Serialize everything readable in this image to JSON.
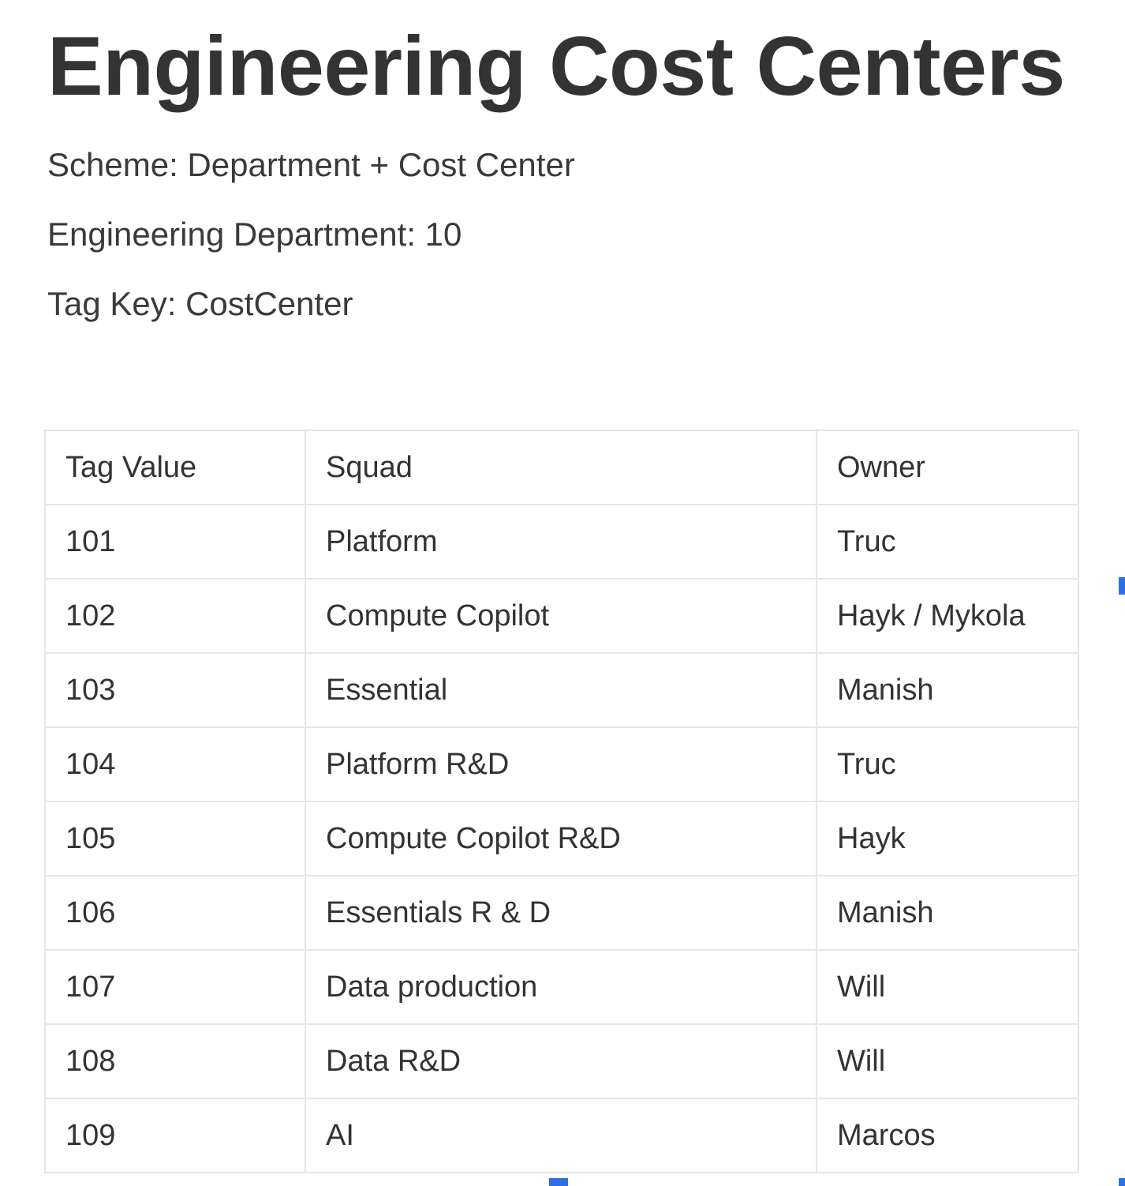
{
  "page": {
    "title": "Engineering Cost Centers",
    "scheme": "Scheme: Department + Cost Center",
    "department": "Engineering Department: 10",
    "tag_key": "Tag Key: CostCenter"
  },
  "table": {
    "headers": [
      "Tag Value",
      "Squad",
      "Owner"
    ],
    "rows": [
      [
        "101",
        "Platform",
        "Truc"
      ],
      [
        "102",
        "Compute Copilot",
        "Hayk / Mykola"
      ],
      [
        "103",
        "Essential",
        "Manish"
      ],
      [
        "104",
        "Platform R&D",
        "Truc"
      ],
      [
        "105",
        "Compute Copilot R&D",
        "Hayk"
      ],
      [
        "106",
        "Essentials R & D",
        "Manish"
      ],
      [
        "107",
        "Data production",
        "Will"
      ],
      [
        "108",
        "Data R&D",
        "Will"
      ],
      [
        "109",
        "AI",
        "Marcos"
      ]
    ]
  },
  "colors": {
    "text": "#333333",
    "border": "#e6e6e6",
    "selection_marker": "#2f6fe4"
  }
}
